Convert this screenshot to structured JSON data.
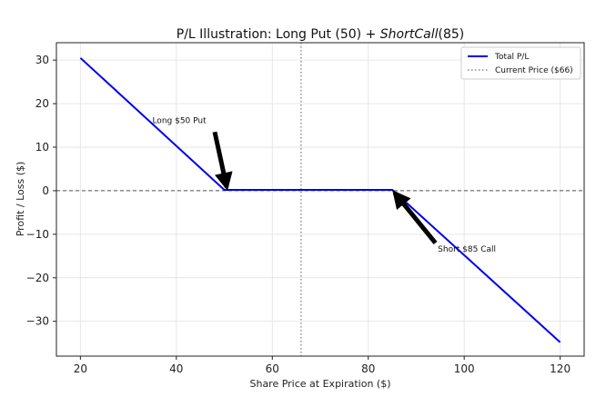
{
  "chart_data": {
    "type": "line",
    "title_main": "P/L Illustration: Long Put (50) + ",
    "title_italic": "ShortCall",
    "title_tail": "(85)",
    "xlabel": "Share Price at Expiration ($)",
    "ylabel": "Profit / Loss ($)",
    "xlim": [
      15,
      125
    ],
    "ylim": [
      -38,
      34
    ],
    "xticks": [
      20,
      40,
      60,
      80,
      100,
      120
    ],
    "yticks": [
      30,
      20,
      10,
      0,
      -10,
      -20,
      -30
    ],
    "ytick_labels": [
      "30",
      "20",
      "10",
      "0",
      "−10",
      "−20",
      "−30"
    ],
    "grid": true,
    "series": [
      {
        "name": "Total P/L",
        "color": "#0000ee",
        "x": [
          20,
          50,
          85,
          120
        ],
        "y": [
          30.5,
          0.2,
          0.2,
          -34.8
        ]
      }
    ],
    "reference_lines": [
      {
        "type": "vertical",
        "x": 66,
        "name": "Current Price ($66)",
        "color": "#777777",
        "style": "dotted"
      },
      {
        "type": "horizontal",
        "y": 0,
        "color": "#555555",
        "style": "dashed"
      }
    ],
    "annotations": [
      {
        "text": "Long $50 Put",
        "text_x": 35,
        "text_y": 15.5,
        "arrow_from": [
          48,
          13.5
        ],
        "arrow_to": [
          50.5,
          0.8
        ]
      },
      {
        "text": "Short $85 Call",
        "text_x": 94.5,
        "text_y": -14,
        "arrow_from": [
          94,
          -12
        ],
        "arrow_to": [
          85.5,
          -0.5
        ]
      }
    ],
    "legend": {
      "position": "top-right",
      "entries": [
        "Total P/L",
        "Current Price ($66)"
      ]
    }
  }
}
